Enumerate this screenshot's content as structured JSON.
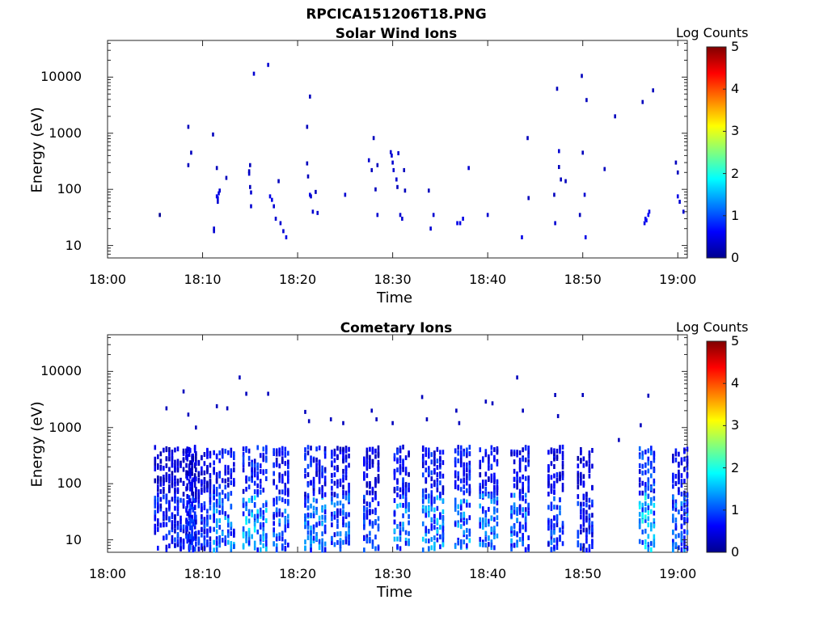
{
  "figure": {
    "title": "RPCICA151206T18.PNG"
  },
  "chart_data": [
    {
      "type": "heatmap",
      "title": "Solar Wind Ions",
      "xlabel": "Time",
      "ylabel": "Energy (eV)",
      "x_ticks": [
        "18:00",
        "18:10",
        "18:20",
        "18:30",
        "18:40",
        "18:50",
        "19:00"
      ],
      "x_range_minutes": [
        0,
        61
      ],
      "y_ticks": [
        "10",
        "100",
        "1000",
        "10000"
      ],
      "y_scale": "log",
      "y_range": [
        6,
        45000
      ],
      "colorbar": {
        "label": "Log Counts",
        "ticks": [
          "0",
          "1",
          "2",
          "3",
          "4",
          "5"
        ],
        "range": [
          0,
          5
        ],
        "colormap": "jet"
      },
      "points": [
        [
          5.5,
          35,
          0.1
        ],
        [
          8.5,
          1300,
          0.3
        ],
        [
          8.5,
          270,
          0.3
        ],
        [
          8.8,
          450,
          0.3
        ],
        [
          11.1,
          950,
          0.3
        ],
        [
          11.2,
          18,
          0.4
        ],
        [
          11.2,
          20,
          0.4
        ],
        [
          11.5,
          240,
          0.3
        ],
        [
          11.5,
          75,
          0.5
        ],
        [
          11.6,
          70,
          0.5
        ],
        [
          11.6,
          60,
          0.4
        ],
        [
          11.7,
          85,
          0.5
        ],
        [
          11.8,
          95,
          0.4
        ],
        [
          12.5,
          160,
          0.3
        ],
        [
          14.9,
          190,
          0.4
        ],
        [
          14.9,
          210,
          0.3
        ],
        [
          15.0,
          270,
          0.3
        ],
        [
          15.0,
          110,
          0.3
        ],
        [
          15.1,
          88,
          0.4
        ],
        [
          15.1,
          50,
          0.4
        ],
        [
          15.4,
          11500,
          0.4
        ],
        [
          16.9,
          16500,
          0.4
        ],
        [
          17.1,
          75,
          0.5
        ],
        [
          17.3,
          65,
          0.5
        ],
        [
          17.5,
          50,
          0.4
        ],
        [
          17.7,
          30,
          0.4
        ],
        [
          18.0,
          140,
          0.3
        ],
        [
          18.2,
          25,
          0.4
        ],
        [
          18.5,
          18,
          0.4
        ],
        [
          18.8,
          14,
          0.5
        ],
        [
          21.0,
          1300,
          0.3
        ],
        [
          21.0,
          290,
          0.3
        ],
        [
          21.1,
          170,
          0.3
        ],
        [
          21.3,
          4500,
          0.3
        ],
        [
          21.3,
          80,
          0.5
        ],
        [
          21.4,
          75,
          0.4
        ],
        [
          21.6,
          40,
          0.4
        ],
        [
          21.9,
          90,
          0.3
        ],
        [
          22.1,
          38,
          0.4
        ],
        [
          25.0,
          80,
          0.4
        ],
        [
          27.5,
          330,
          0.4
        ],
        [
          27.8,
          220,
          0.3
        ],
        [
          28.0,
          820,
          0.3
        ],
        [
          28.2,
          100,
          0.3
        ],
        [
          28.4,
          270,
          0.3
        ],
        [
          28.4,
          35,
          0.4
        ],
        [
          29.8,
          460,
          0.4
        ],
        [
          29.9,
          400,
          0.4
        ],
        [
          30.0,
          300,
          0.4
        ],
        [
          30.1,
          220,
          0.4
        ],
        [
          30.4,
          150,
          0.4
        ],
        [
          30.5,
          110,
          0.3
        ],
        [
          30.6,
          440,
          0.4
        ],
        [
          30.8,
          35,
          0.4
        ],
        [
          31.0,
          30,
          0.4
        ],
        [
          31.2,
          220,
          0.3
        ],
        [
          31.3,
          95,
          0.3
        ],
        [
          33.8,
          95,
          0.3
        ],
        [
          34.0,
          20,
          0.4
        ],
        [
          34.3,
          35,
          0.4
        ],
        [
          36.8,
          25,
          0.5
        ],
        [
          37.1,
          25,
          0.5
        ],
        [
          37.4,
          30,
          0.5
        ],
        [
          38.0,
          240,
          0.4
        ],
        [
          40.0,
          35,
          0.4
        ],
        [
          43.6,
          14,
          0.5
        ],
        [
          44.2,
          820,
          0.3
        ],
        [
          44.3,
          70,
          0.3
        ],
        [
          47.0,
          80,
          0.3
        ],
        [
          47.1,
          25,
          0.4
        ],
        [
          47.3,
          6200,
          0.3
        ],
        [
          47.5,
          480,
          0.4
        ],
        [
          47.5,
          250,
          0.3
        ],
        [
          47.7,
          150,
          0.3
        ],
        [
          48.2,
          140,
          0.3
        ],
        [
          49.7,
          35,
          0.3
        ],
        [
          49.9,
          10500,
          0.3
        ],
        [
          50.0,
          450,
          0.3
        ],
        [
          50.2,
          80,
          0.4
        ],
        [
          50.3,
          14,
          0.5
        ],
        [
          50.4,
          3900,
          0.3
        ],
        [
          52.3,
          230,
          0.3
        ],
        [
          53.4,
          2000,
          0.3
        ],
        [
          56.3,
          3600,
          0.3
        ],
        [
          56.5,
          25,
          0.5
        ],
        [
          56.6,
          30,
          0.5
        ],
        [
          56.7,
          28,
          0.6
        ],
        [
          56.9,
          35,
          0.6
        ],
        [
          57.0,
          40,
          0.5
        ],
        [
          57.4,
          5800,
          0.3
        ],
        [
          59.8,
          300,
          0.3
        ],
        [
          60.0,
          75,
          0.5
        ],
        [
          60.0,
          200,
          0.3
        ],
        [
          60.2,
          60,
          0.4
        ],
        [
          60.6,
          40,
          0.4
        ]
      ]
    },
    {
      "type": "heatmap",
      "title": "Cometary Ions",
      "xlabel": "Time",
      "ylabel": "Energy (eV)",
      "x_ticks": [
        "18:00",
        "18:10",
        "18:20",
        "18:30",
        "18:40",
        "18:50",
        "19:00"
      ],
      "x_range_minutes": [
        0,
        61
      ],
      "y_ticks": [
        "10",
        "100",
        "1000",
        "10000"
      ],
      "y_scale": "log",
      "y_range": [
        6,
        45000
      ],
      "colorbar": {
        "label": "Log Counts",
        "ticks": [
          "0",
          "1",
          "2",
          "3",
          "4",
          "5"
        ],
        "range": [
          0,
          5
        ],
        "colormap": "jet"
      },
      "points": [
        [
          6.2,
          2200,
          0.3
        ],
        [
          8.0,
          4400,
          0.3
        ],
        [
          8.5,
          1700,
          0.3
        ],
        [
          9.3,
          1000,
          0.3
        ],
        [
          11.5,
          2400,
          0.3
        ],
        [
          12.6,
          2200,
          0.3
        ],
        [
          13.9,
          7800,
          0.3
        ],
        [
          14.6,
          4000,
          0.3
        ],
        [
          16.9,
          4000,
          0.3
        ],
        [
          20.8,
          1900,
          0.3
        ],
        [
          21.2,
          1300,
          0.3
        ],
        [
          23.5,
          1400,
          0.3
        ],
        [
          24.8,
          1200,
          0.3
        ],
        [
          27.8,
          2000,
          0.3
        ],
        [
          28.3,
          1400,
          0.3
        ],
        [
          30.0,
          1200,
          0.3
        ],
        [
          33.1,
          3500,
          0.3
        ],
        [
          33.6,
          1400,
          0.3
        ],
        [
          36.7,
          2000,
          0.3
        ],
        [
          37.0,
          1200,
          0.3
        ],
        [
          39.8,
          2900,
          0.3
        ],
        [
          40.5,
          2700,
          0.3
        ],
        [
          43.1,
          7800,
          0.3
        ],
        [
          43.7,
          2000,
          0.3
        ],
        [
          47.1,
          3800,
          0.3
        ],
        [
          47.4,
          1600,
          0.3
        ],
        [
          50.0,
          3800,
          0.3
        ],
        [
          53.8,
          600,
          0.3
        ],
        [
          56.1,
          1100,
          0.3
        ],
        [
          56.9,
          3700,
          0.3
        ]
      ],
      "bursts": [
        [
          5.0,
          9.5,
          0.9
        ],
        [
          8.4,
          11.0,
          1.0
        ],
        [
          11.2,
          13.5,
          1.4
        ],
        [
          14.3,
          16.8,
          1.6
        ],
        [
          17.5,
          19.2,
          1.3
        ],
        [
          20.8,
          23.0,
          1.4
        ],
        [
          23.6,
          25.7,
          1.2
        ],
        [
          27.0,
          28.8,
          1.0
        ],
        [
          30.2,
          31.8,
          1.4
        ],
        [
          33.2,
          35.5,
          1.5
        ],
        [
          36.6,
          38.2,
          1.5
        ],
        [
          39.2,
          41.0,
          1.3
        ],
        [
          42.5,
          44.3,
          1.3
        ],
        [
          46.4,
          48.0,
          1.1
        ],
        [
          49.5,
          51.0,
          0.9
        ],
        [
          56.0,
          57.6,
          1.8
        ],
        [
          59.5,
          61.0,
          1.2
        ]
      ]
    }
  ]
}
